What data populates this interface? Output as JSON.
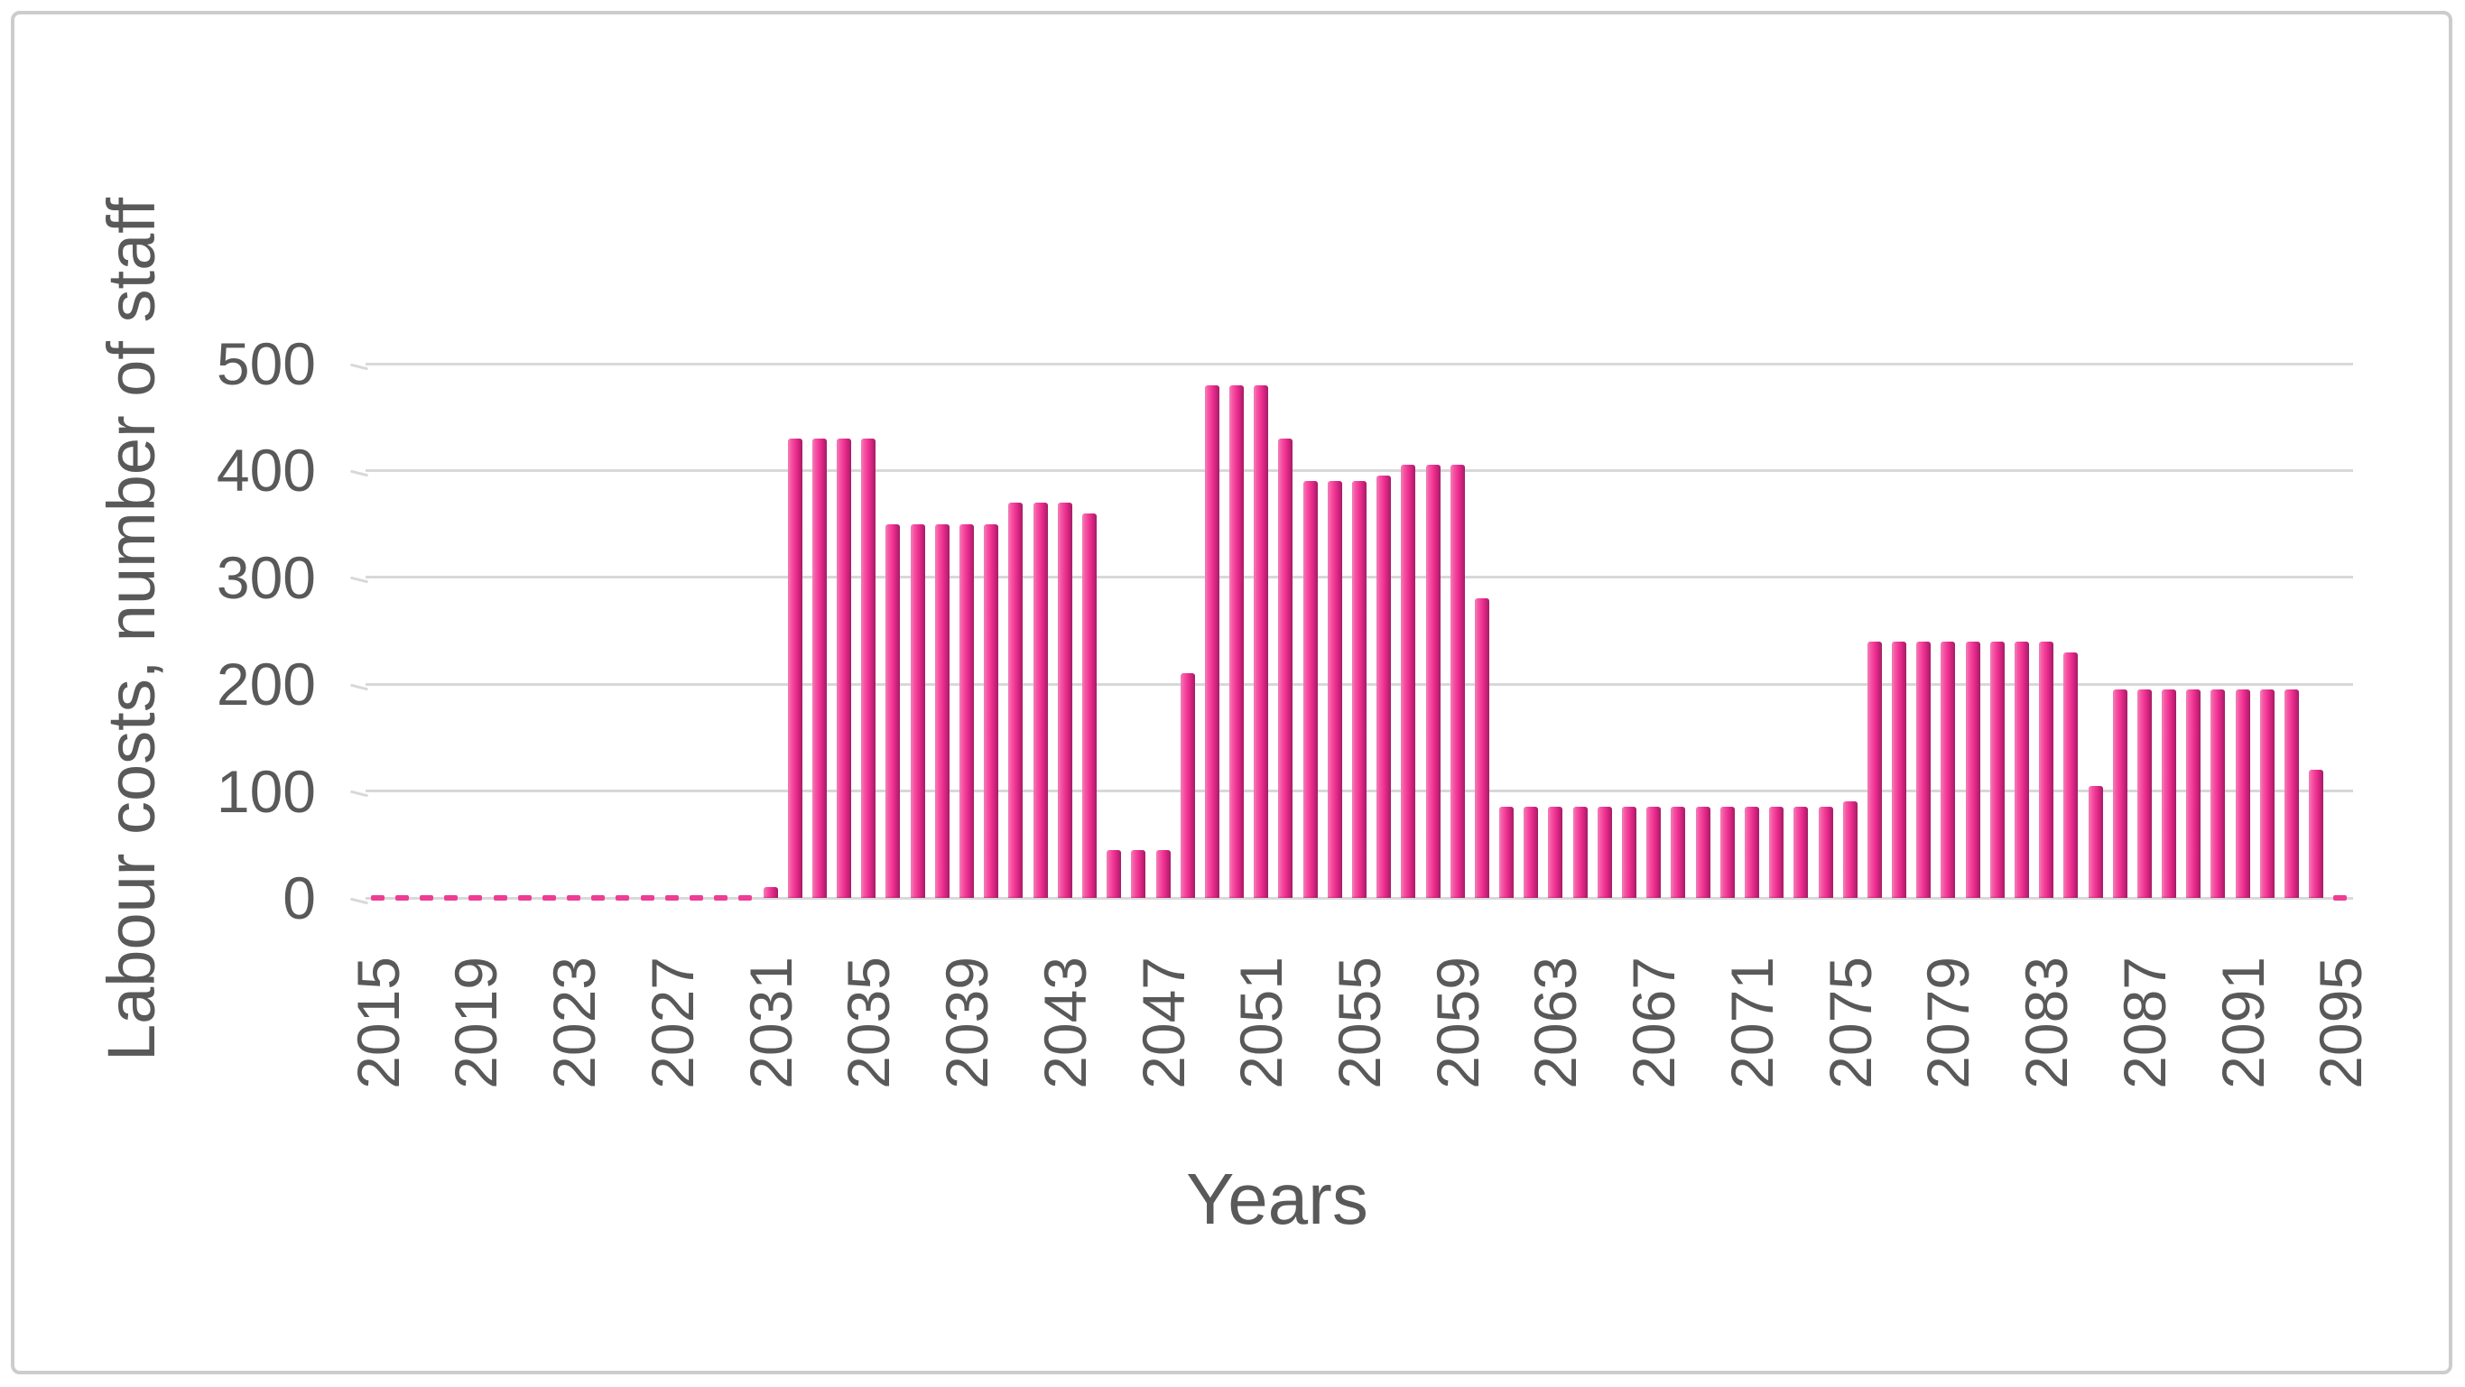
{
  "figure": {
    "background": "#ffffff",
    "border_color": "#cccccc"
  },
  "chart_data": {
    "type": "bar",
    "title": "",
    "xlabel": "Years",
    "ylabel": "Labour costs, number of staff",
    "ylim": [
      0,
      500
    ],
    "yticks": [
      0,
      100,
      200,
      300,
      400,
      500
    ],
    "xtick_interval": 4,
    "xticklabels": [
      "2015",
      "2019",
      "2023",
      "2027",
      "2031",
      "2035",
      "2039",
      "2043",
      "2047",
      "2051",
      "2055",
      "2059",
      "2063",
      "2067",
      "2071",
      "2075",
      "2079",
      "2083",
      "2087",
      "2091",
      "2095"
    ],
    "grid": "horizontal",
    "legend_position": "none",
    "bar_color_main": "#f23795",
    "bar_color_light": "#f887c0",
    "bar_color_dark": "#a81d68",
    "gridline_color": "#d8d8d8",
    "text_color": "#595959",
    "x": [
      2015,
      2016,
      2017,
      2018,
      2019,
      2020,
      2021,
      2022,
      2023,
      2024,
      2025,
      2026,
      2027,
      2028,
      2029,
      2030,
      2031,
      2032,
      2033,
      2034,
      2035,
      2036,
      2037,
      2038,
      2039,
      2040,
      2041,
      2042,
      2043,
      2044,
      2045,
      2046,
      2047,
      2048,
      2049,
      2050,
      2051,
      2052,
      2053,
      2054,
      2055,
      2056,
      2057,
      2058,
      2059,
      2060,
      2061,
      2062,
      2063,
      2064,
      2065,
      2066,
      2067,
      2068,
      2069,
      2070,
      2071,
      2072,
      2073,
      2074,
      2075,
      2076,
      2077,
      2078,
      2079,
      2080,
      2081,
      2082,
      2083,
      2084,
      2085,
      2086,
      2087,
      2088,
      2089,
      2090,
      2091,
      2092,
      2093,
      2094,
      2095
    ],
    "values": [
      0,
      0,
      0,
      0,
      0,
      0,
      0,
      0,
      0,
      0,
      0,
      0,
      0,
      0,
      0,
      0,
      10,
      430,
      430,
      430,
      430,
      350,
      350,
      350,
      350,
      350,
      370,
      370,
      370,
      360,
      45,
      45,
      45,
      210,
      480,
      480,
      480,
      430,
      390,
      390,
      390,
      395,
      405,
      405,
      405,
      280,
      85,
      85,
      85,
      85,
      85,
      85,
      85,
      85,
      85,
      85,
      85,
      85,
      85,
      85,
      90,
      240,
      240,
      240,
      240,
      240,
      240,
      240,
      240,
      230,
      105,
      195,
      195,
      195,
      195,
      195,
      195,
      195,
      195,
      120,
      0
    ]
  }
}
